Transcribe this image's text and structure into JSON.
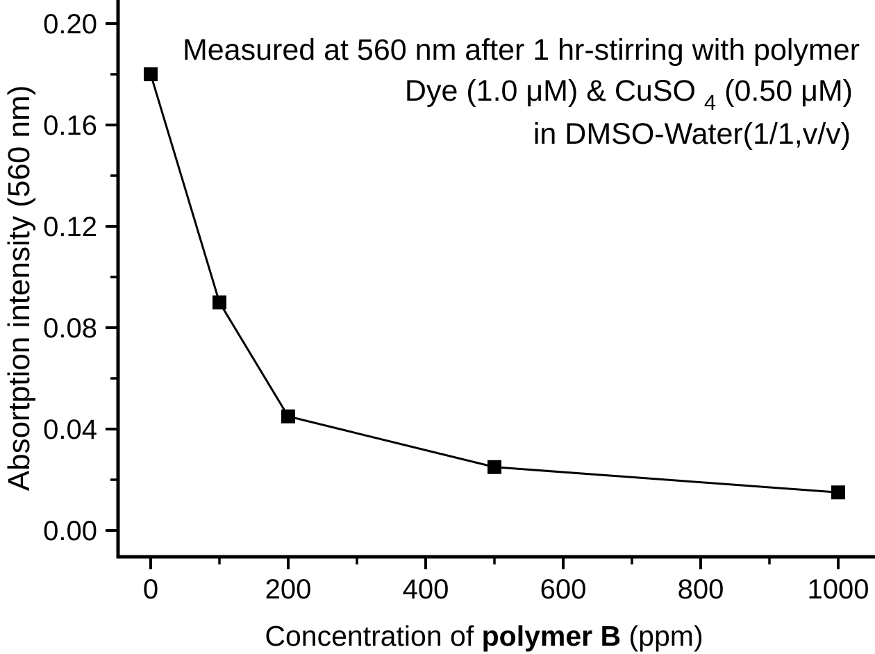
{
  "figure": {
    "background": "#ffffff",
    "foreground": "#000000"
  },
  "chart_data": {
    "type": "line",
    "title": "",
    "ylabel": "Absortption intensity (560 nm)",
    "xlabel_parts": [
      {
        "text": "Concentration of ",
        "bold": false
      },
      {
        "text": "polymer B",
        "bold": true
      },
      {
        "text": " (ppm)",
        "bold": false
      }
    ],
    "annotation": {
      "line1": "Measured at 560 nm after 1 hr-stirring with polymer",
      "line2": {
        "pre": "Dye (1.0 μM) & CuSO",
        "sub": "4",
        "post": "(0.50 μM)"
      },
      "line3": "in DMSO-Water(1/1,v/v)"
    },
    "x": [
      0,
      100,
      200,
      500,
      1000
    ],
    "series": [
      {
        "name": "absorption-intensity-560nm",
        "values": [
          0.18,
          0.09,
          0.045,
          0.025,
          0.015
        ]
      }
    ],
    "x_ticks": [
      {
        "value": 0,
        "label": "0"
      },
      {
        "value": 200,
        "label": "200"
      },
      {
        "value": 400,
        "label": "400"
      },
      {
        "value": 600,
        "label": "600"
      },
      {
        "value": 800,
        "label": "800"
      },
      {
        "value": 1000,
        "label": "1000"
      }
    ],
    "x_minor_ticks": [
      100,
      300,
      500,
      700,
      900
    ],
    "y_ticks": [
      {
        "value": 0.0,
        "label": "0.00"
      },
      {
        "value": 0.04,
        "label": "0.04"
      },
      {
        "value": 0.08,
        "label": "0.08"
      },
      {
        "value": 0.12,
        "label": "0.12"
      },
      {
        "value": 0.16,
        "label": "0.16"
      },
      {
        "value": 0.2,
        "label": "0.20"
      }
    ],
    "y_minor_ticks": [
      0.02,
      0.06,
      0.1,
      0.14,
      0.18
    ],
    "xlim": [
      -47,
      1053
    ],
    "ylim": [
      -0.0104,
      0.2093
    ],
    "marker": "square",
    "line_color": "#000000",
    "marker_color": "#000000",
    "grid": false,
    "legend": false
  }
}
